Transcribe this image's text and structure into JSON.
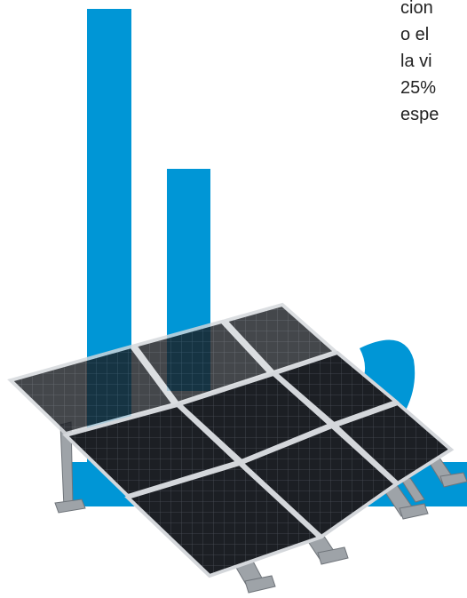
{
  "text_lines": [
    "cion",
    "o el",
    "la vi",
    "25%",
    "espe"
  ],
  "colors": {
    "accent": "#0096d6",
    "panel": "#1c1f24",
    "frame": "#cfd2d6",
    "text": "#222222"
  },
  "illustration": {
    "subject": "solar-panel-array",
    "panel_rows": 3,
    "panel_columns": 3
  }
}
